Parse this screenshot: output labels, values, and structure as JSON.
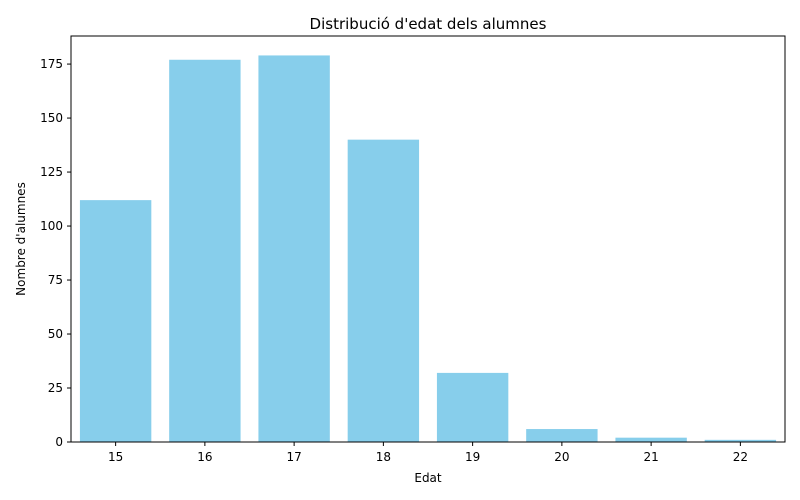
{
  "chart_data": {
    "type": "bar",
    "title": "Distribució d'edat dels alumnes",
    "xlabel": "Edat",
    "ylabel": "Nombre d'alumnes",
    "categories": [
      "15",
      "16",
      "17",
      "18",
      "19",
      "20",
      "21",
      "22"
    ],
    "values": [
      112,
      177,
      179,
      140,
      32,
      6,
      2,
      1
    ],
    "ylim": [
      0,
      188
    ],
    "yticks": [
      0,
      25,
      50,
      75,
      100,
      125,
      150,
      175
    ],
    "bar_color": "#87ceeb",
    "grid": false,
    "legend": "none"
  }
}
